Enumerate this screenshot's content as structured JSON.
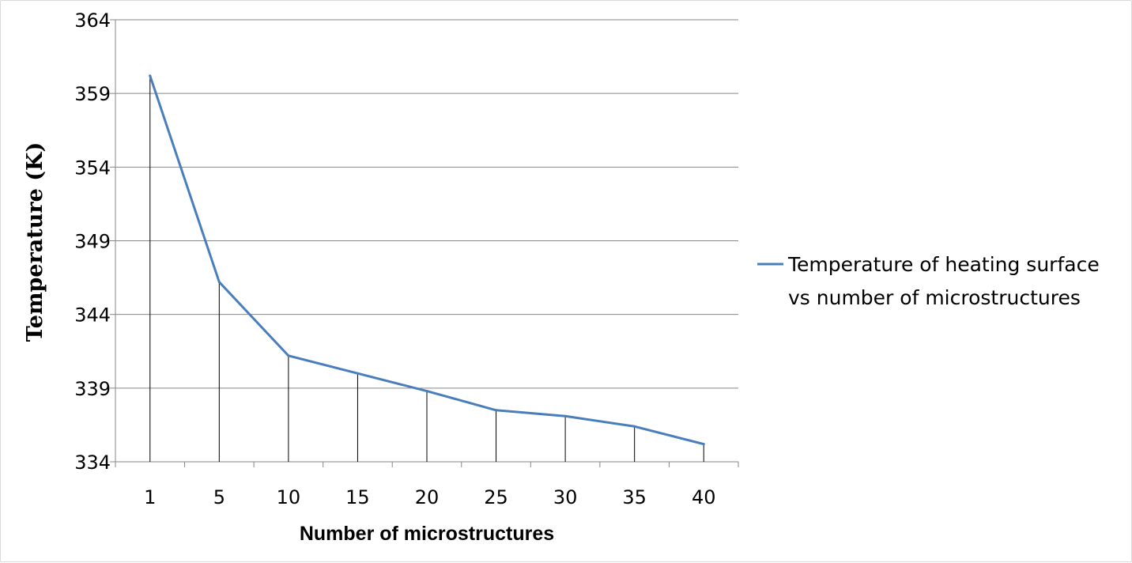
{
  "chart_data": {
    "type": "line",
    "title": "",
    "xlabel": "Number of microstructures",
    "ylabel": "Temperature (K)",
    "categories": [
      "1",
      "5",
      "10",
      "15",
      "20",
      "25",
      "30",
      "35",
      "40"
    ],
    "series": [
      {
        "name": "Temperature of heating surface vs number of microstructures",
        "name_lines": [
          "Temperature of heating surface",
          "vs number of microstructures"
        ],
        "values": [
          360.2,
          346.2,
          341.2,
          340.0,
          338.8,
          337.5,
          337.1,
          336.4,
          335.2
        ],
        "color": "#4a7ebb"
      }
    ],
    "ylim": [
      334,
      364
    ],
    "yticks": [
      "334",
      "339",
      "344",
      "349",
      "354",
      "359",
      "364"
    ],
    "grid": "horizontal",
    "drop_lines": true,
    "legend_position": "right"
  }
}
